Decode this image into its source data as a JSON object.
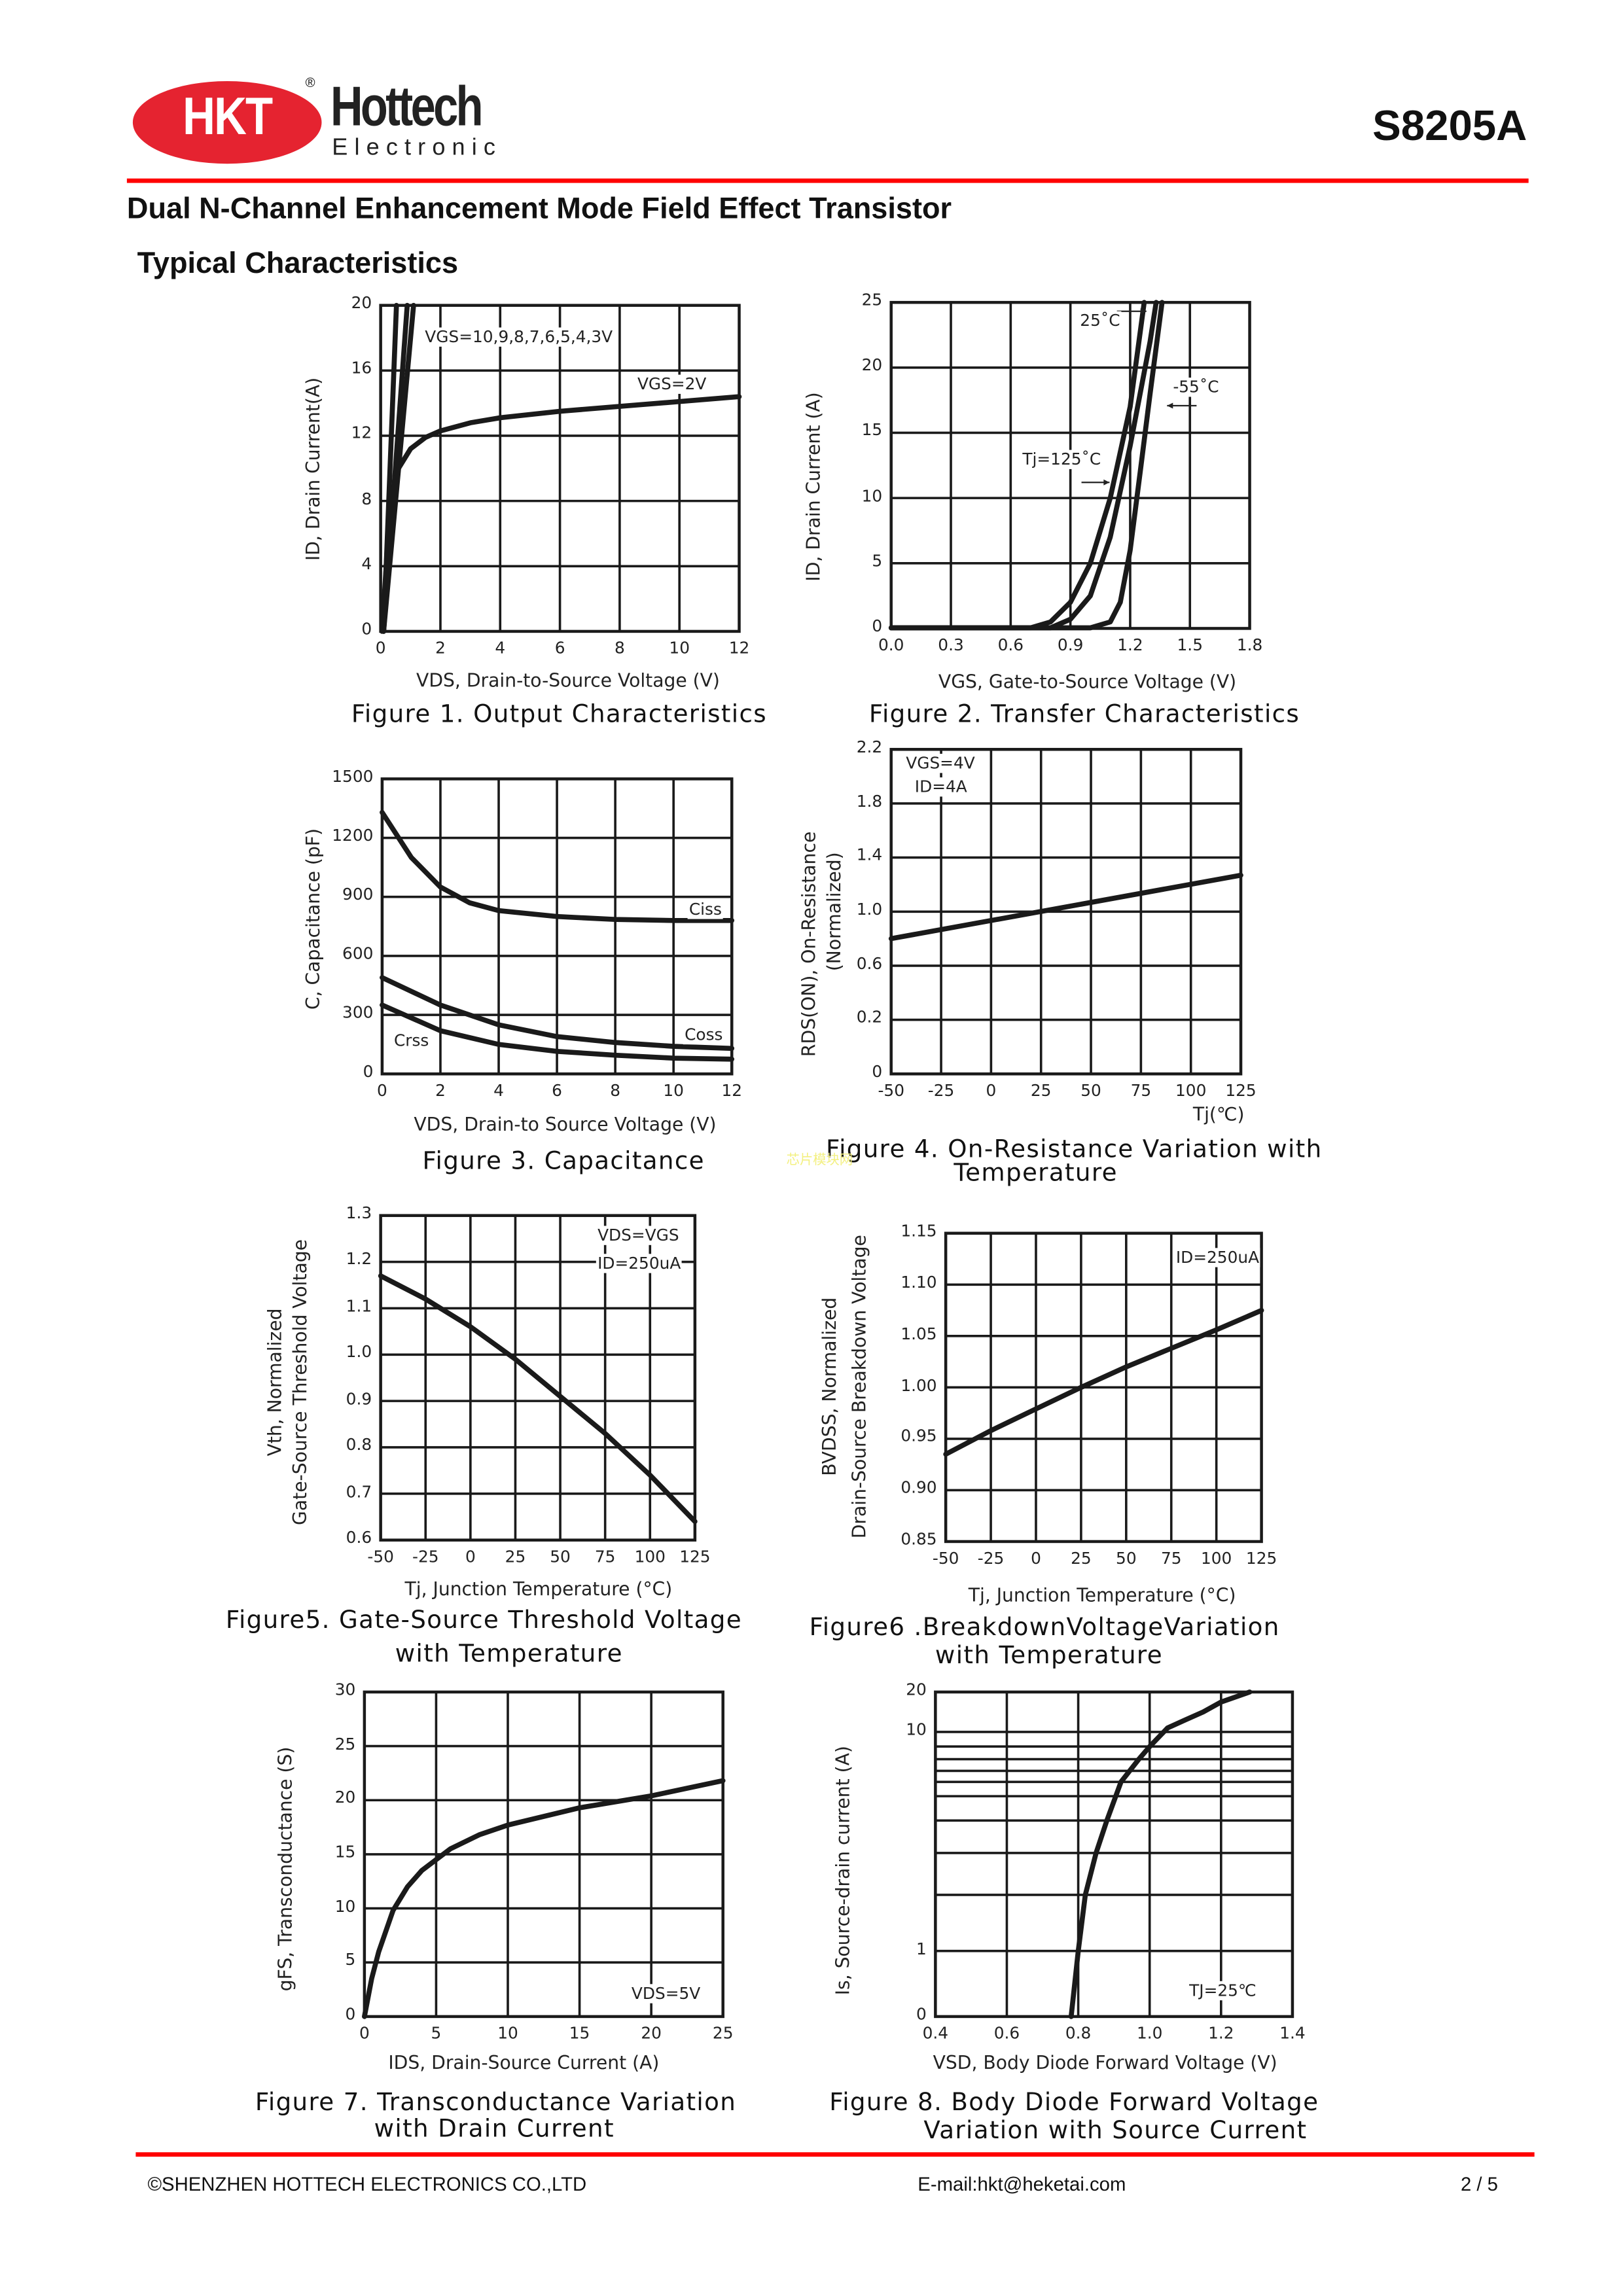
{
  "header": {
    "logo_mark": "HKT",
    "logo_name": "Hottech",
    "logo_sub": "Electronic",
    "logo_reg": "®",
    "part_number": "S8205A",
    "brand_color": "#e52330",
    "rule_color": "#ff0000"
  },
  "title": "Dual N-Channel Enhancement Mode Field Effect Transistor",
  "section": "Typical Characteristics",
  "watermark": "芯片模块网",
  "chart_data": [
    {
      "id": "fig1",
      "type": "line",
      "caption": [
        "Figure 1. Output Characteristics"
      ],
      "xlabel": "VDS, Drain-to-Source Voltage (V)",
      "ylabel": [
        "ID, Drain Current(A)"
      ],
      "xticks": [
        "0",
        "2",
        "4",
        "6",
        "8",
        "10",
        "12"
      ],
      "yticks": [
        "0",
        "4",
        "8",
        "12",
        "16",
        "20"
      ],
      "xlim": [
        0,
        12
      ],
      "ylim": [
        0,
        20
      ],
      "grid": true,
      "annotations": [
        "VGS=10,9,8,7,6,5,4,3V",
        "VGS=2V"
      ],
      "series": [
        {
          "name": "VGS=10,9,8,7,6,5,4,3V",
          "points": [
            [
              0.1,
              0
            ],
            [
              0.53,
              20
            ]
          ]
        },
        {
          "name": "VGS=10,9,8,7,6,5,4,3V",
          "points": [
            [
              0.1,
              0
            ],
            [
              0.89,
              20
            ]
          ]
        },
        {
          "name": "VGS=10,9,8,7,6,5,4,3V",
          "points": [
            [
              0.1,
              0
            ],
            [
              1.1,
              20
            ]
          ]
        },
        {
          "name": "VGS=2V",
          "points": [
            [
              0.05,
              0
            ],
            [
              0.25,
              6
            ],
            [
              0.4,
              8.5
            ],
            [
              0.6,
              10
            ],
            [
              1,
              11.2
            ],
            [
              1.5,
              11.9
            ],
            [
              2,
              12.3
            ],
            [
              3,
              12.8
            ],
            [
              4,
              13.1
            ],
            [
              6,
              13.5
            ],
            [
              8,
              13.8
            ],
            [
              10,
              14.1
            ],
            [
              12,
              14.4
            ]
          ]
        }
      ]
    },
    {
      "id": "fig2",
      "type": "line",
      "caption": [
        "Figure 2. Transfer Characteristics"
      ],
      "xlabel": "VGS, Gate-to-Source Voltage (V)",
      "ylabel": [
        "ID, Drain Current (A)"
      ],
      "xticks": [
        "0.0",
        "0.3",
        "0.6",
        "0.9",
        "1.2",
        "1.5",
        "1.8"
      ],
      "yticks": [
        "0",
        "5",
        "10",
        "15",
        "20",
        "25"
      ],
      "xlim": [
        0,
        1.8
      ],
      "ylim": [
        0,
        25
      ],
      "grid": true,
      "annotations": [
        "25˚C",
        "-55˚C",
        "Tj=125˚C"
      ],
      "series": [
        {
          "name": "Tj=125˚C",
          "points": [
            [
              0,
              0.05
            ],
            [
              0.7,
              0.05
            ],
            [
              0.8,
              0.5
            ],
            [
              0.9,
              2
            ],
            [
              1.0,
              5
            ],
            [
              1.1,
              10
            ],
            [
              1.2,
              17
            ],
            [
              1.27,
              25
            ]
          ]
        },
        {
          "name": "25˚C",
          "points": [
            [
              0,
              0.05
            ],
            [
              0.8,
              0.05
            ],
            [
              0.9,
              0.7
            ],
            [
              1.0,
              2.5
            ],
            [
              1.1,
              7
            ],
            [
              1.2,
              14
            ],
            [
              1.3,
              22
            ],
            [
              1.33,
              25
            ]
          ]
        },
        {
          "name": "-55˚C",
          "points": [
            [
              0,
              0.05
            ],
            [
              1.0,
              0.05
            ],
            [
              1.1,
              0.5
            ],
            [
              1.15,
              2
            ],
            [
              1.2,
              6
            ],
            [
              1.25,
              12
            ],
            [
              1.3,
              18
            ],
            [
              1.36,
              25
            ]
          ]
        }
      ]
    },
    {
      "id": "fig3",
      "type": "line",
      "caption": [
        "Figure 3. Capacitance"
      ],
      "xlabel": "VDS, Drain-to Source Voltage (V)",
      "ylabel": [
        "C, Capacitance (pF)"
      ],
      "xticks": [
        "0",
        "2",
        "4",
        "6",
        "8",
        "10",
        "12"
      ],
      "yticks": [
        "0",
        "300",
        "600",
        "900",
        "1200",
        "1500"
      ],
      "xlim": [
        0,
        12
      ],
      "ylim": [
        0,
        1500
      ],
      "grid": true,
      "annotations": [
        "Ciss",
        "Coss",
        "Crss"
      ],
      "series": [
        {
          "name": "Ciss",
          "points": [
            [
              0,
              1330
            ],
            [
              1,
              1100
            ],
            [
              2,
              950
            ],
            [
              3,
              870
            ],
            [
              4,
              830
            ],
            [
              6,
              800
            ],
            [
              8,
              785
            ],
            [
              10,
              780
            ],
            [
              12,
              780
            ]
          ]
        },
        {
          "name": "Coss",
          "points": [
            [
              0,
              490
            ],
            [
              2,
              350
            ],
            [
              4,
              250
            ],
            [
              6,
              190
            ],
            [
              8,
              160
            ],
            [
              10,
              140
            ],
            [
              12,
              130
            ]
          ]
        },
        {
          "name": "Crss",
          "points": [
            [
              0,
              350
            ],
            [
              2,
              220
            ],
            [
              4,
              150
            ],
            [
              6,
              115
            ],
            [
              8,
              95
            ],
            [
              10,
              80
            ],
            [
              12,
              75
            ]
          ]
        }
      ]
    },
    {
      "id": "fig4",
      "type": "line",
      "caption": [
        "Figure 4. On-Resistance Variation with",
        "Temperature"
      ],
      "xlabel": "Tj(℃)",
      "ylabel": [
        "RDS(ON), On-Resistance",
        "(Normalized)"
      ],
      "xticks": [
        "-50",
        "-25",
        "0",
        "25",
        "50",
        "75",
        "100",
        "125"
      ],
      "yticks": [
        "0",
        "0.2",
        "0.6",
        "1.0",
        "1.4",
        "1.8",
        "2.2"
      ],
      "xlim": [
        -50,
        125
      ],
      "ylim": [
        0,
        2.2
      ],
      "grid": true,
      "annotations": [
        "VGS=4V",
        "ID=4A"
      ],
      "series": [
        {
          "points": [
            [
              -50,
              0.8
            ],
            [
              125,
              1.27
            ]
          ]
        }
      ]
    },
    {
      "id": "fig5",
      "type": "line",
      "caption": [
        "Figure5. Gate-Source Threshold Voltage",
        "with Temperature"
      ],
      "xlabel": "Tj, Junction Temperature (°C)",
      "ylabel": [
        "Vth, Normalized",
        "Gate-Source Threshold Voltage"
      ],
      "xticks": [
        "-50",
        "-25",
        "0",
        "25",
        "50",
        "75",
        "100",
        "125"
      ],
      "yticks": [
        "0.6",
        "0.7",
        "0.8",
        "0.9",
        "1.0",
        "1.1",
        "1.2",
        "1.3"
      ],
      "xlim": [
        -50,
        125
      ],
      "ylim": [
        0.6,
        1.3
      ],
      "grid": true,
      "annotations": [
        "VDS=VGS",
        "ID=250uA"
      ],
      "series": [
        {
          "points": [
            [
              -50,
              1.17
            ],
            [
              -25,
              1.12
            ],
            [
              0,
              1.06
            ],
            [
              25,
              0.99
            ],
            [
              50,
              0.91
            ],
            [
              75,
              0.83
            ],
            [
              100,
              0.74
            ],
            [
              125,
              0.64
            ]
          ]
        }
      ]
    },
    {
      "id": "fig6",
      "type": "line",
      "caption": [
        "Figure6 .BreakdownVoltageVariation",
        "with Temperature"
      ],
      "xlabel": "Tj, Junction Temperature (°C)",
      "ylabel": [
        "BVDSS, Normalized",
        "Drain-Source Breakdown Voltage"
      ],
      "xticks": [
        "-50",
        "-25",
        "0",
        "25",
        "50",
        "75",
        "100",
        "125"
      ],
      "yticks": [
        "0.85",
        "0.90",
        "0.95",
        "1.00",
        "1.05",
        "1.10",
        "1.15"
      ],
      "xlim": [
        -50,
        125
      ],
      "ylim": [
        0.85,
        1.15
      ],
      "grid": true,
      "annotations": [
        "ID=250uA"
      ],
      "series": [
        {
          "points": [
            [
              -50,
              0.935
            ],
            [
              -25,
              0.958
            ],
            [
              0,
              0.979
            ],
            [
              25,
              1.0
            ],
            [
              50,
              1.02
            ],
            [
              75,
              1.038
            ],
            [
              100,
              1.056
            ],
            [
              125,
              1.075
            ]
          ]
        }
      ]
    },
    {
      "id": "fig7",
      "type": "line",
      "caption": [
        "Figure 7. Transconductance Variation",
        "with Drain Current"
      ],
      "xlabel": "IDS, Drain-Source Current (A)",
      "ylabel": [
        "gFS, Transconductance (S)"
      ],
      "xticks": [
        "0",
        "5",
        "10",
        "15",
        "20",
        "25"
      ],
      "yticks": [
        "0",
        "5",
        "10",
        "15",
        "20",
        "25",
        "30"
      ],
      "xlim": [
        0,
        25
      ],
      "ylim": [
        0,
        30
      ],
      "grid": true,
      "annotations": [
        "VDS=5V"
      ],
      "series": [
        {
          "points": [
            [
              0,
              0
            ],
            [
              0.5,
              3.5
            ],
            [
              1,
              6
            ],
            [
              2,
              9.8
            ],
            [
              3,
              12
            ],
            [
              4,
              13.5
            ],
            [
              6,
              15.5
            ],
            [
              8,
              16.8
            ],
            [
              10,
              17.7
            ],
            [
              15,
              19.3
            ],
            [
              20,
              20.4
            ],
            [
              25,
              21.8
            ]
          ]
        }
      ]
    },
    {
      "id": "fig8",
      "type": "line",
      "caption": [
        "Figure 8. Body Diode Forward Voltage",
        "Variation with Source Current"
      ],
      "xlabel": "VSD, Body Diode Forward Voltage (V)",
      "ylabel": [
        "Is, Source-drain current (A)"
      ],
      "xticks": [
        "0.4",
        "0.6",
        "0.8",
        "1.0",
        "1.2",
        "1.4"
      ],
      "yticks": [
        "0",
        "1",
        "10",
        "20"
      ],
      "y_grid": [
        0,
        1,
        2,
        3,
        4,
        5,
        6,
        7,
        8,
        9,
        10,
        20
      ],
      "xlim": [
        0.4,
        1.4
      ],
      "ylim": [
        0,
        20
      ],
      "yscale": "log",
      "grid": true,
      "annotations": [
        "TJ=25℃"
      ],
      "series": [
        {
          "points": [
            [
              0.78,
              0
            ],
            [
              0.79,
              0.5
            ],
            [
              0.8,
              1
            ],
            [
              0.82,
              2
            ],
            [
              0.85,
              3
            ],
            [
              0.88,
              4
            ],
            [
              0.92,
              6
            ],
            [
              0.97,
              8
            ],
            [
              1.0,
              9
            ],
            [
              1.05,
              11
            ],
            [
              1.1,
              13
            ],
            [
              1.15,
              15
            ],
            [
              1.2,
              17.5
            ],
            [
              1.28,
              20
            ]
          ]
        }
      ]
    }
  ],
  "footer": {
    "copyright": "©SHENZHEN HOTTECH ELECTRONICS CO.,LTD",
    "email": "E-mail:hkt@heketai.com",
    "page": "2 / 5"
  }
}
